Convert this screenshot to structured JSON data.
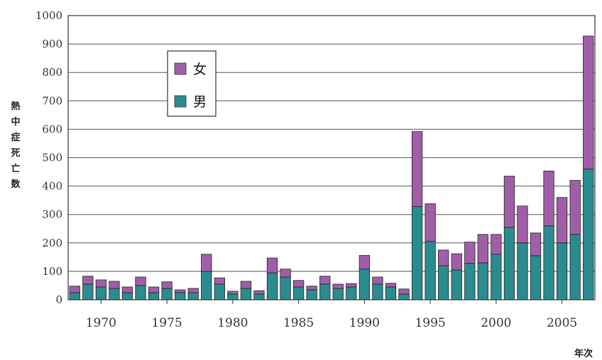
{
  "chart_data": {
    "type": "bar",
    "stacked": true,
    "title": "",
    "ylabel": "熱中症死亡数",
    "xlabel": "年次",
    "ylim": [
      0,
      1000
    ],
    "yticks": [
      "0",
      "100",
      "200",
      "300",
      "400",
      "500",
      "600",
      "700",
      "800",
      "900",
      "1000"
    ],
    "xtick_labels": [
      "1970",
      "1975",
      "1980",
      "1985",
      "1990",
      "1995",
      "2000",
      "2005"
    ],
    "legend_position": "top-left",
    "grid": true,
    "categories": [
      1968,
      1969,
      1970,
      1971,
      1972,
      1973,
      1974,
      1975,
      1976,
      1977,
      1978,
      1979,
      1980,
      1981,
      1982,
      1983,
      1984,
      1985,
      1986,
      1987,
      1988,
      1989,
      1990,
      1991,
      1992,
      1993,
      1994,
      1995,
      1996,
      1997,
      1998,
      1999,
      2000,
      2001,
      2002,
      2003,
      2004,
      2005,
      2006,
      2007
    ],
    "series": [
      {
        "name": "男",
        "color": "#2a8c8f",
        "values": [
          25,
          55,
          45,
          40,
          25,
          50,
          25,
          40,
          25,
          25,
          100,
          55,
          20,
          40,
          20,
          95,
          80,
          45,
          35,
          55,
          40,
          45,
          108,
          55,
          45,
          20,
          328,
          205,
          120,
          105,
          128,
          130,
          160,
          255,
          200,
          155,
          260,
          200,
          230,
          460
        ]
      },
      {
        "name": "女",
        "color": "#a05ea8",
        "values": [
          23,
          28,
          25,
          25,
          20,
          30,
          20,
          23,
          10,
          15,
          60,
          22,
          10,
          25,
          12,
          52,
          28,
          23,
          13,
          28,
          15,
          12,
          48,
          25,
          13,
          18,
          264,
          133,
          55,
          57,
          75,
          100,
          70,
          180,
          130,
          80,
          193,
          160,
          190,
          468
        ]
      }
    ]
  }
}
